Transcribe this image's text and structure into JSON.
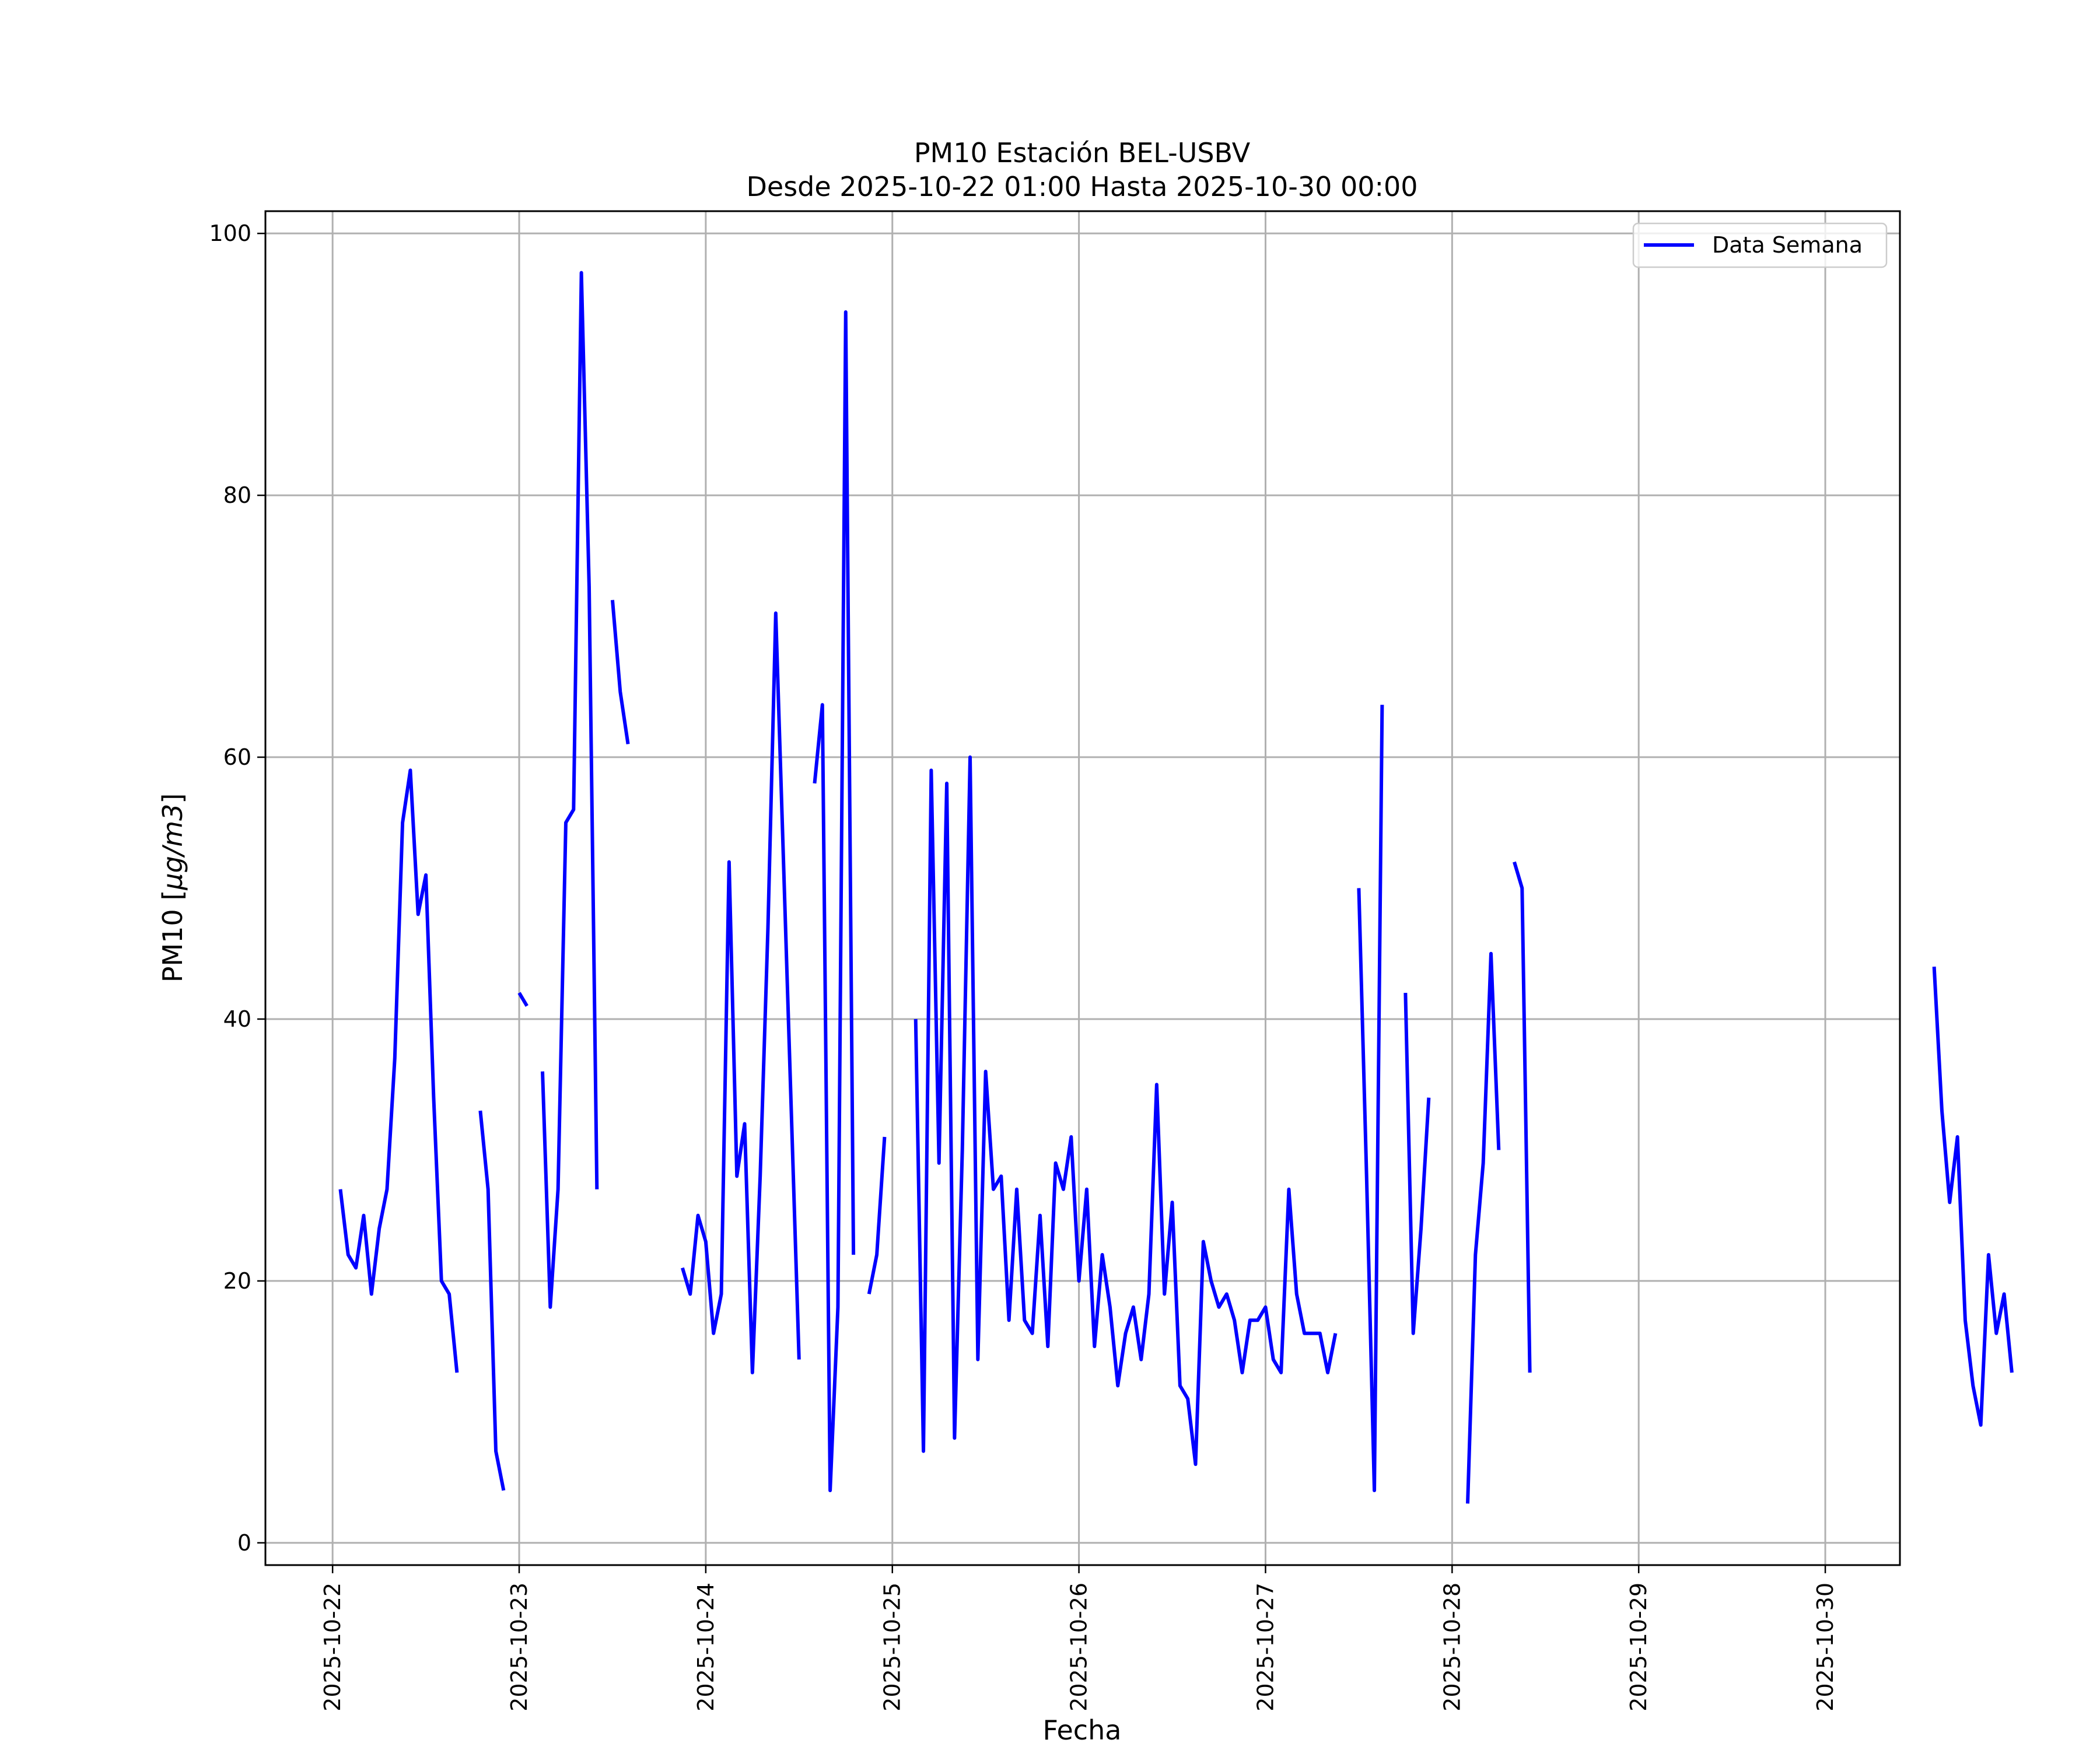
{
  "chart_data": {
    "type": "line",
    "title": "PM10 Estación BEL-USBV",
    "subtitle": "Desde 2025-10-22 01:00 Hasta 2025-10-30 00:00",
    "xlabel": "Fecha",
    "ylabel_prefix": "PM10 [",
    "ylabel_unit": "μg/m3",
    "ylabel_suffix": "]",
    "x_start": "2025-10-22 00:00",
    "xlim_days": [
      -0.36,
      8.4
    ],
    "ylim": [
      -1.7,
      101.7
    ],
    "x_ticks": [
      "2025-10-22",
      "2025-10-23",
      "2025-10-24",
      "2025-10-25",
      "2025-10-26",
      "2025-10-27",
      "2025-10-28",
      "2025-10-29",
      "2025-10-30"
    ],
    "y_ticks": [
      "0",
      "20",
      "40",
      "60",
      "80",
      "100"
    ],
    "grid": true,
    "legend_position": "upper right",
    "colors": {
      "series": "#0000ff",
      "grid": "#b0b0b0"
    },
    "series": [
      {
        "name": "Data Semana",
        "hour_offsets_note": "x = hours after 2025-10-22 00:00; null = gap",
        "points": [
          [
            1,
            27
          ],
          [
            2,
            22
          ],
          [
            3,
            21
          ],
          [
            4,
            25
          ],
          [
            5,
            19
          ],
          [
            6,
            24
          ],
          [
            7,
            27
          ],
          [
            8,
            37
          ],
          [
            9,
            55
          ],
          [
            10,
            59
          ],
          [
            11,
            48
          ],
          [
            12,
            51
          ],
          [
            13,
            34
          ],
          [
            14,
            20
          ],
          [
            15,
            19
          ],
          [
            16,
            13
          ],
          [
            17,
            null
          ],
          [
            19,
            33
          ],
          [
            20,
            27
          ],
          [
            21,
            7
          ],
          [
            22,
            4
          ],
          [
            23,
            null
          ],
          [
            24,
            42
          ],
          [
            25,
            41
          ],
          [
            26,
            null
          ],
          [
            27,
            36
          ],
          [
            28,
            18
          ],
          [
            29,
            27
          ],
          [
            30,
            55
          ],
          [
            31,
            56
          ],
          [
            32,
            97
          ],
          [
            33,
            73
          ],
          [
            34,
            27
          ],
          [
            35,
            null
          ],
          [
            36,
            72
          ],
          [
            37,
            65
          ],
          [
            38,
            61
          ],
          [
            39,
            null
          ],
          [
            45,
            21
          ],
          [
            46,
            19
          ],
          [
            47,
            25
          ],
          [
            48,
            23
          ],
          [
            49,
            16
          ],
          [
            50,
            19
          ],
          [
            51,
            52
          ],
          [
            52,
            28
          ],
          [
            53,
            32
          ],
          [
            54,
            13
          ],
          [
            55,
            28
          ],
          [
            56,
            47
          ],
          [
            57,
            71
          ],
          [
            58,
            52
          ],
          [
            59,
            33
          ],
          [
            60,
            14
          ],
          [
            61,
            null
          ],
          [
            62,
            58
          ],
          [
            63,
            64
          ],
          [
            64,
            4
          ],
          [
            65,
            18
          ],
          [
            66,
            94
          ],
          [
            67,
            22
          ],
          [
            68,
            null
          ],
          [
            69,
            19
          ],
          [
            70,
            22
          ],
          [
            71,
            31
          ],
          [
            72,
            null
          ],
          [
            75,
            40
          ],
          [
            76,
            7
          ],
          [
            77,
            59
          ],
          [
            78,
            29
          ],
          [
            79,
            58
          ],
          [
            80,
            8
          ],
          [
            81,
            30
          ],
          [
            82,
            60
          ],
          [
            83,
            14
          ],
          [
            84,
            36
          ],
          [
            85,
            27
          ],
          [
            86,
            28
          ],
          [
            87,
            17
          ],
          [
            88,
            27
          ],
          [
            89,
            17
          ],
          [
            90,
            16
          ],
          [
            91,
            25
          ],
          [
            92,
            15
          ],
          [
            93,
            29
          ],
          [
            94,
            27
          ],
          [
            95,
            31
          ],
          [
            96,
            20
          ],
          [
            97,
            27
          ],
          [
            98,
            15
          ],
          [
            99,
            22
          ],
          [
            100,
            18
          ],
          [
            101,
            12
          ],
          [
            102,
            16
          ],
          [
            103,
            18
          ],
          [
            104,
            14
          ],
          [
            105,
            19
          ],
          [
            106,
            35
          ],
          [
            107,
            19
          ],
          [
            108,
            26
          ],
          [
            109,
            12
          ],
          [
            110,
            11
          ],
          [
            111,
            6
          ],
          [
            112,
            23
          ],
          [
            113,
            20
          ],
          [
            114,
            18
          ],
          [
            115,
            19
          ],
          [
            116,
            17
          ],
          [
            117,
            13
          ],
          [
            118,
            17
          ],
          [
            119,
            17
          ],
          [
            120,
            18
          ],
          [
            121,
            14
          ],
          [
            122,
            13
          ],
          [
            123,
            27
          ],
          [
            124,
            19
          ],
          [
            125,
            16
          ],
          [
            126,
            16
          ],
          [
            127,
            16
          ],
          [
            128,
            13
          ],
          [
            129,
            16
          ],
          [
            130,
            null
          ],
          [
            132,
            50
          ],
          [
            133,
            28
          ],
          [
            134,
            4
          ],
          [
            135,
            64
          ],
          [
            136,
            null
          ],
          [
            138,
            42
          ],
          [
            139,
            16
          ],
          [
            140,
            24
          ],
          [
            141,
            34
          ],
          [
            142,
            null
          ],
          [
            146,
            3
          ],
          [
            147,
            22
          ],
          [
            148,
            29
          ],
          [
            149,
            45
          ],
          [
            150,
            30
          ],
          [
            151,
            null
          ],
          [
            152,
            52
          ],
          [
            153,
            50
          ],
          [
            154,
            13
          ],
          [
            155,
            null
          ],
          [
            206,
            44
          ],
          [
            207,
            33
          ],
          [
            208,
            26
          ],
          [
            209,
            31
          ],
          [
            210,
            17
          ],
          [
            211,
            12
          ],
          [
            212,
            9
          ],
          [
            213,
            22
          ],
          [
            214,
            16
          ],
          [
            215,
            19
          ],
          [
            216,
            13
          ]
        ]
      }
    ]
  }
}
